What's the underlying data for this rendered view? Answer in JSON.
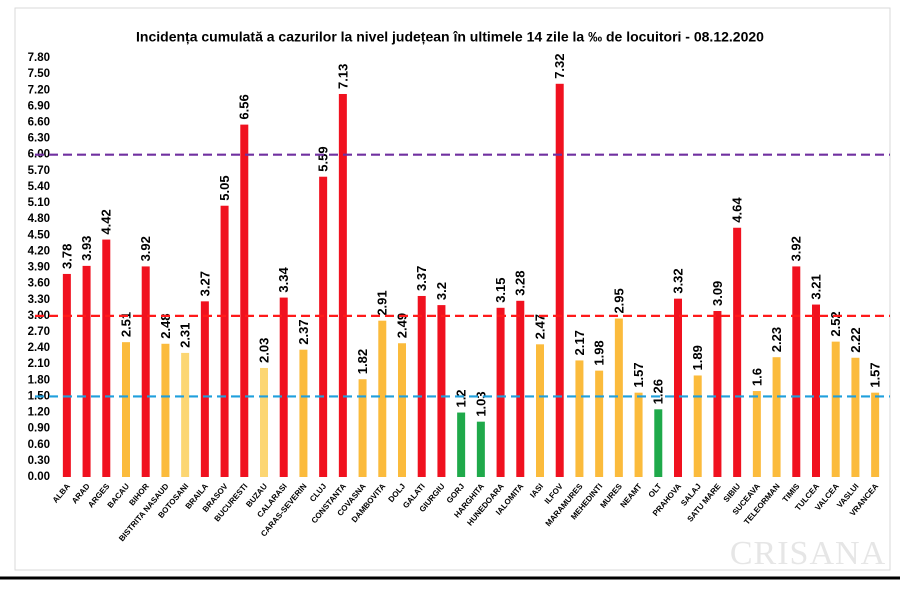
{
  "chart_data": {
    "type": "bar",
    "title": "Incidența cumulată a cazurilor la nivel județean în ultimele 14 zile la ‰ de locuitori - 08.12.2020",
    "watermark": "CRISANA",
    "categories": [
      "ALBA",
      "ARAD",
      "ARGES",
      "BACAU",
      "BIHOR",
      "BISTRITA NASAUD",
      "BOTOSANI",
      "BRAILA",
      "BRASOV",
      "BUCURESTI",
      "BUZAU",
      "CALARASI",
      "CARAS-SEVERIN",
      "CLUJ",
      "CONSTANTA",
      "COVASNA",
      "DAMBOVITA",
      "DOLJ",
      "GALATI",
      "GIURGIU",
      "GORJ",
      "HARGHITA",
      "HUNEDOARA",
      "IALOMITA",
      "IASI",
      "ILFOV",
      "MARAMURES",
      "MEHEDINTI",
      "MURES",
      "NEAMT",
      "OLT",
      "PRAHOVA",
      "SALAJ",
      "SATU MARE",
      "SIBIU",
      "SUCEAVA",
      "TELEORMAN",
      "TIMIS",
      "TULCEA",
      "VALCEA",
      "VASLUI",
      "VRANCEA"
    ],
    "values": [
      3.78,
      3.93,
      4.42,
      2.51,
      3.92,
      2.48,
      2.31,
      3.27,
      5.05,
      6.56,
      2.03,
      3.34,
      2.37,
      5.59,
      7.13,
      1.82,
      2.91,
      2.49,
      3.37,
      3.2,
      1.2,
      1.03,
      3.15,
      3.28,
      2.47,
      7.32,
      2.17,
      1.98,
      2.95,
      1.57,
      1.26,
      3.32,
      1.89,
      3.09,
      4.64,
      1.6,
      2.23,
      3.92,
      3.21,
      2.52,
      2.22,
      1.57
    ],
    "colors": [
      "#f0111f",
      "#f0111f",
      "#f0111f",
      "#fbbb3c",
      "#f0111f",
      "#fbbb3c",
      "#fcd672",
      "#f0111f",
      "#f0111f",
      "#f0111f",
      "#fcd672",
      "#f0111f",
      "#fbbb3c",
      "#f0111f",
      "#f0111f",
      "#fbbb3c",
      "#fbbb3c",
      "#fbbb3c",
      "#f0111f",
      "#f0111f",
      "#1fa94a",
      "#1fa94a",
      "#f0111f",
      "#f0111f",
      "#fbbb3c",
      "#f0111f",
      "#fbbb3c",
      "#fbbb3c",
      "#fbbb3c",
      "#fbbb3c",
      "#1fa94a",
      "#f0111f",
      "#fbbb3c",
      "#f0111f",
      "#f0111f",
      "#fbbb3c",
      "#fbbb3c",
      "#f0111f",
      "#f0111f",
      "#fbbb3c",
      "#fbbb3c",
      "#fbbb3c"
    ],
    "ylim": [
      0,
      7.8
    ],
    "yticks": [
      {
        "value": 0,
        "label": "0.00"
      },
      {
        "value": 0.3,
        "label": "0.30"
      },
      {
        "value": 0.6,
        "label": "0.60"
      },
      {
        "value": 0.9,
        "label": "0.90"
      },
      {
        "value": 1.2,
        "label": "1.20"
      },
      {
        "value": 1.5,
        "label": "1.50"
      },
      {
        "value": 1.8,
        "label": "1.80"
      },
      {
        "value": 2.1,
        "label": "2.10"
      },
      {
        "value": 2.4,
        "label": "2.40"
      },
      {
        "value": 2.7,
        "label": "2.70"
      },
      {
        "value": 3,
        "label": "3.00"
      },
      {
        "value": 3.3,
        "label": "3.30"
      },
      {
        "value": 3.6,
        "label": "3.60"
      },
      {
        "value": 3.9,
        "label": "3.90"
      },
      {
        "value": 4.2,
        "label": "4.20"
      },
      {
        "value": 4.5,
        "label": "4.50"
      },
      {
        "value": 4.8,
        "label": "4.80"
      },
      {
        "value": 5.1,
        "label": "5.10"
      },
      {
        "value": 5.4,
        "label": "5.40"
      },
      {
        "value": 5.7,
        "label": "5.70"
      },
      {
        "value": 6,
        "label": "6.00"
      },
      {
        "value": 6.3,
        "label": "6.30"
      },
      {
        "value": 6.6,
        "label": "6.60"
      },
      {
        "value": 6.9,
        "label": "6.90"
      },
      {
        "value": 7.2,
        "label": "7.20"
      },
      {
        "value": 7.5,
        "label": "7.50"
      },
      {
        "value": 7.8,
        "label": "7.80"
      }
    ],
    "reference_lines": [
      {
        "value": 6,
        "color": "#7030a0"
      },
      {
        "value": 3,
        "color": "#ff1a1a"
      },
      {
        "value": 1.5,
        "color": "#1f9fdc"
      }
    ],
    "grid": false
  }
}
